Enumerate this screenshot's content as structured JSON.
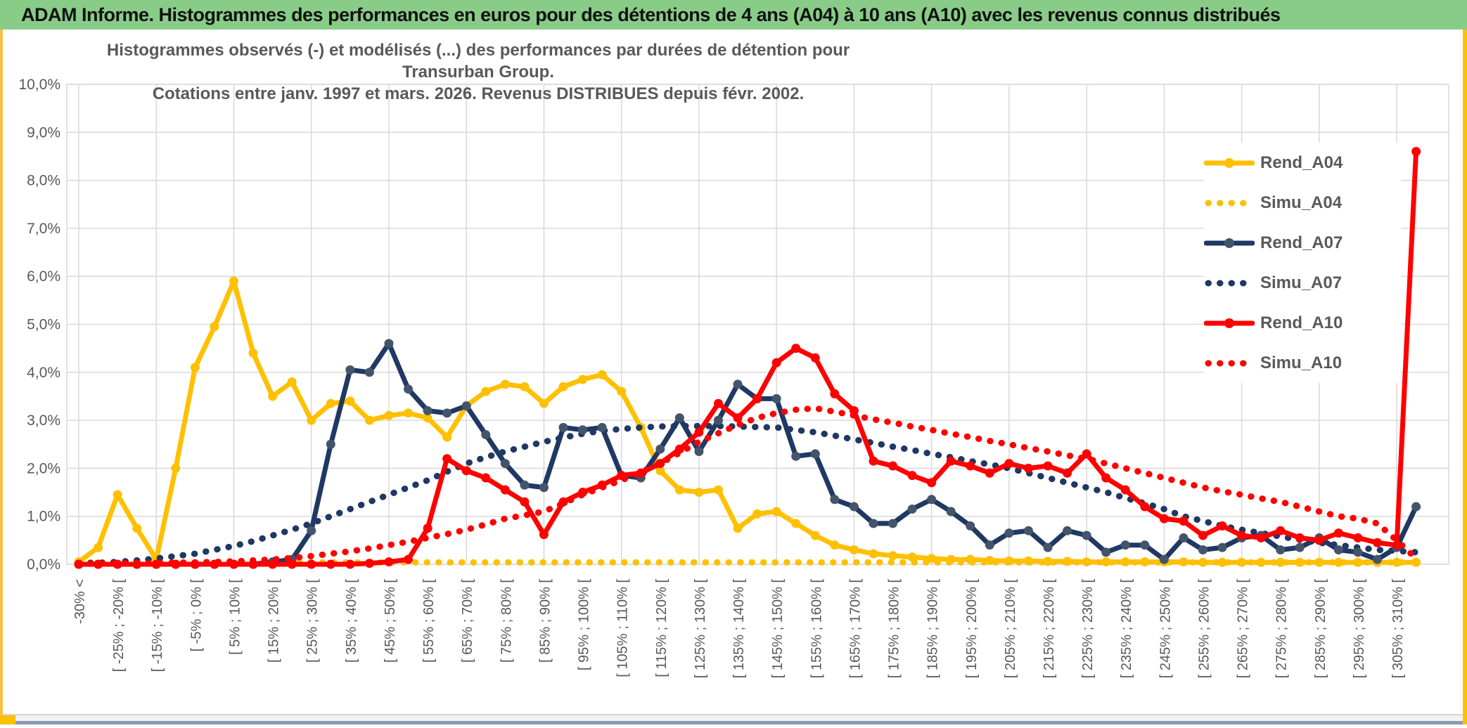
{
  "window": {
    "header_title": "ADAM Informe. Histogrammes des performances en euros pour des détentions de 4 ans (A04) à 10 ans (A10) avec les revenus connus distribués",
    "colors": {
      "header_bg": "#88cc88",
      "gold_accent": "#ffc000",
      "gridline": "#d9d9d9",
      "axis_text": "#595959",
      "bottom_edge": "#8a99b3"
    }
  },
  "chart": {
    "title_line1": "Histogrammes observés (-) et modélisés (...) des performances par durées de détention pour Transurban Group.",
    "title_line2": "Cotations entre janv. 1997 et mars. 2026. Revenus DISTRIBUES depuis févr. 2002."
  },
  "chart_data": {
    "type": "line",
    "title": "Histogrammes observés (-) et modélisés (...) des performances par durées de détention pour Transurban Group. Cotations entre janv. 1997 et mars. 2026. Revenus DISTRIBUES depuis févr. 2002.",
    "xlabel": "",
    "ylabel": "",
    "ylim": [
      0,
      10
    ],
    "grid": true,
    "legend_position": "right-upper",
    "y_tick_labels": [
      "10,0%",
      "9,0%",
      "8,0%",
      "7,0%",
      "6,0%",
      "5,0%",
      "4,0%",
      "3,0%",
      "2,0%",
      "1,0%",
      "0,0%"
    ],
    "x_tick_note": "35 labels shown on every other bin; 70 bins of 5% width are plotted",
    "categories": [
      "-30% <",
      "[ -25% ; -20% [",
      "[ -15% ; -10% [",
      "[ -5% ; 0% [",
      "[ 5% ; 10% [",
      "[ 15% ; 20% [",
      "[ 25% ; 30% [",
      "[ 35% ; 40% [",
      "[ 45% ; 50% [",
      "[ 55% ; 60% [",
      "[ 65% ; 70% [",
      "[ 75% ; 80% [",
      "[ 85% ; 90% [",
      "[ 95% ; 100% [",
      "[ 105% ; 110% [",
      "[ 115% ; 120% [",
      "[ 125% ; 130% [",
      "[ 135% ; 140% [",
      "[ 145% ; 150% [",
      "[ 155% ; 160% [",
      "[ 165% ; 170% [",
      "[ 175% ; 180% [",
      "[ 185% ; 190% [",
      "[ 195% ; 200% [",
      "[ 205% ; 210% [",
      "[ 215% ; 220% [",
      "[ 225% ; 230% [",
      "[ 235% ; 240% [",
      "[ 245% ; 250% [",
      "[ 255% ; 260% [",
      "[ 265% ; 270% [",
      "[ 275% ; 280% [",
      "[ 285% ; 290% [",
      "[ 295% ; 300% [",
      "[ 305% ; 310% ["
    ],
    "series": [
      {
        "name": "Rend_A04",
        "style": "solid",
        "color": "#FFC000",
        "marker": "#FFC000",
        "values": [
          0.05,
          0.35,
          1.45,
          0.75,
          0.1,
          2.0,
          4.1,
          4.95,
          5.9,
          4.4,
          3.5,
          3.8,
          3.0,
          3.35,
          3.4,
          3.0,
          3.1,
          3.15,
          3.05,
          2.65,
          3.3,
          3.6,
          3.75,
          3.7,
          3.35,
          3.7,
          3.85,
          3.95,
          3.6,
          2.85,
          1.95,
          1.55,
          1.5,
          1.55,
          0.75,
          1.05,
          1.1,
          0.85,
          0.6,
          0.4,
          0.3,
          0.22,
          0.18,
          0.15,
          0.12,
          0.1,
          0.1,
          0.08,
          0.07,
          0.07,
          0.06,
          0.06,
          0.05,
          0.05,
          0.05,
          0.05,
          0.05,
          0.05,
          0.04,
          0.04,
          0.04,
          0.04,
          0.04,
          0.04,
          0.04,
          0.04,
          0.04,
          0.04,
          0.04,
          0.04
        ]
      },
      {
        "name": "Simu_A04",
        "style": "dotted",
        "color": "#FFC000",
        "values": [
          0.04,
          0.04,
          0.04,
          0.04,
          0.04,
          0.04,
          0.04,
          0.04,
          0.04,
          0.04,
          0.04,
          0.04,
          0.04,
          0.04,
          0.04,
          0.04,
          0.04,
          0.04,
          0.04,
          0.04,
          0.04,
          0.04,
          0.04,
          0.04,
          0.04,
          0.04,
          0.04,
          0.04,
          0.04,
          0.04,
          0.04,
          0.04,
          0.04,
          0.04,
          0.04,
          0.04,
          0.04,
          0.04,
          0.04,
          0.04,
          0.04,
          0.04,
          0.04,
          0.04,
          0.04,
          0.04,
          0.04,
          0.04,
          0.04,
          0.04,
          0.04,
          0.04,
          0.04,
          0.04,
          0.04,
          0.04,
          0.04,
          0.04,
          0.04,
          0.04,
          0.04,
          0.04,
          0.04,
          0.04,
          0.04,
          0.04,
          0.04,
          0.04,
          0.04,
          0.04
        ]
      },
      {
        "name": "Rend_A07",
        "style": "solid",
        "color": "#1F3864",
        "marker": "#44546A",
        "values": [
          0,
          0,
          0,
          0,
          0,
          0,
          0,
          0,
          0,
          0,
          0.05,
          0.1,
          0.7,
          2.5,
          4.05,
          4.0,
          4.6,
          3.65,
          3.2,
          3.15,
          3.3,
          2.7,
          2.1,
          1.65,
          1.6,
          2.85,
          2.8,
          2.85,
          1.85,
          1.8,
          2.4,
          3.05,
          2.35,
          3.0,
          3.75,
          3.45,
          3.45,
          2.25,
          2.3,
          1.35,
          1.2,
          0.85,
          0.85,
          1.15,
          1.35,
          1.1,
          0.8,
          0.4,
          0.65,
          0.7,
          0.35,
          0.7,
          0.6,
          0.25,
          0.4,
          0.4,
          0.1,
          0.55,
          0.3,
          0.35,
          0.55,
          0.6,
          0.3,
          0.35,
          0.55,
          0.3,
          0.25,
          0.1,
          0.35,
          1.2
        ]
      },
      {
        "name": "Simu_A07",
        "style": "dotted",
        "color": "#1F3864",
        "values": [
          0.02,
          0.03,
          0.05,
          0.08,
          0.12,
          0.17,
          0.22,
          0.3,
          0.38,
          0.48,
          0.6,
          0.72,
          0.85,
          1.0,
          1.15,
          1.3,
          1.45,
          1.6,
          1.75,
          1.93,
          2.1,
          2.23,
          2.35,
          2.45,
          2.55,
          2.64,
          2.72,
          2.78,
          2.82,
          2.85,
          2.87,
          2.88,
          2.88,
          2.88,
          2.87,
          2.86,
          2.85,
          2.8,
          2.75,
          2.68,
          2.6,
          2.53,
          2.45,
          2.38,
          2.3,
          2.23,
          2.15,
          2.08,
          2.0,
          1.9,
          1.8,
          1.7,
          1.6,
          1.5,
          1.38,
          1.27,
          1.15,
          1.0,
          0.9,
          0.8,
          0.72,
          0.65,
          0.58,
          0.51,
          0.45,
          0.4,
          0.35,
          0.3,
          0.28,
          0.25
        ]
      },
      {
        "name": "Rend_A10",
        "style": "solid",
        "color": "#FF0000",
        "marker": "#FF0000",
        "values": [
          0,
          0,
          0,
          0,
          0,
          0,
          0,
          0,
          0,
          0,
          0,
          0,
          0,
          0,
          0,
          0.02,
          0.05,
          0.1,
          0.75,
          2.2,
          1.95,
          1.8,
          1.55,
          1.3,
          0.62,
          1.3,
          1.5,
          1.65,
          1.85,
          1.9,
          2.1,
          2.4,
          2.75,
          3.35,
          3.05,
          3.45,
          4.2,
          4.5,
          4.3,
          3.55,
          3.2,
          2.15,
          2.05,
          1.85,
          1.7,
          2.15,
          2.05,
          1.9,
          2.1,
          2.0,
          2.05,
          1.9,
          2.3,
          1.8,
          1.55,
          1.2,
          0.95,
          0.9,
          0.6,
          0.8,
          0.6,
          0.55,
          0.7,
          0.55,
          0.5,
          0.65,
          0.55,
          0.45,
          0.4,
          8.6
        ]
      },
      {
        "name": "Simu_A10",
        "style": "dotted",
        "color": "#FF0000",
        "values": [
          0.01,
          0.01,
          0.02,
          0.02,
          0.03,
          0.03,
          0.04,
          0.05,
          0.06,
          0.08,
          0.1,
          0.13,
          0.17,
          0.22,
          0.27,
          0.33,
          0.4,
          0.47,
          0.55,
          0.63,
          0.72,
          0.83,
          0.95,
          1.02,
          1.1,
          1.27,
          1.45,
          1.6,
          1.75,
          1.92,
          2.1,
          2.32,
          2.55,
          2.73,
          2.9,
          3.05,
          3.15,
          3.22,
          3.25,
          3.18,
          3.1,
          3.02,
          2.95,
          2.87,
          2.8,
          2.72,
          2.65,
          2.57,
          2.5,
          2.42,
          2.35,
          2.27,
          2.2,
          2.1,
          2.0,
          1.9,
          1.8,
          1.7,
          1.6,
          1.52,
          1.45,
          1.37,
          1.3,
          1.2,
          1.1,
          1.0,
          0.95,
          0.85,
          0.5,
          0.12
        ]
      }
    ]
  }
}
